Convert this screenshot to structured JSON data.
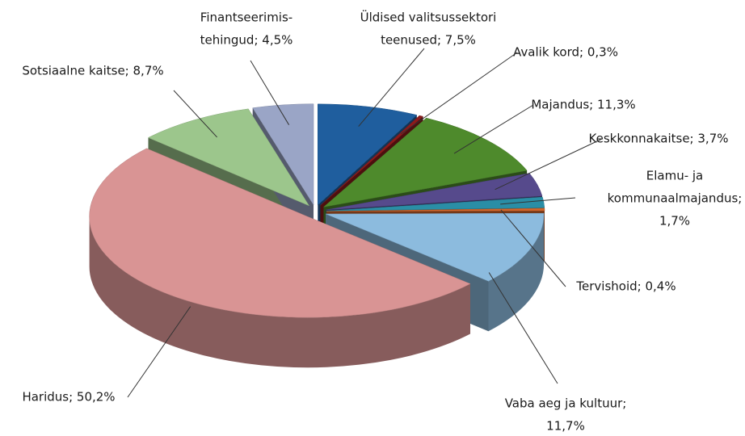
{
  "chart_data": {
    "type": "pie3d",
    "labels": [
      [
        "Üldised valitsussektori",
        "teenused; 7,5%"
      ],
      [
        "Avalik kord; 0,3%"
      ],
      [
        "Majandus; 11,3%"
      ],
      [
        "Keskkonnakaitse; 3,7%"
      ],
      [
        "Elamu- ja",
        "kommunaalmajandus;",
        "1,7%"
      ],
      [
        "Tervishoid; 0,4%"
      ],
      [
        "Vaba aeg ja kultuur;",
        "11,7%"
      ],
      [
        "Haridus; 50,2%"
      ],
      [
        "Sotsiaalne kaitse; 8,7%"
      ],
      [
        "Finantseerimis-",
        "tehingud; 4,5%"
      ]
    ],
    "values": [
      7.5,
      0.3,
      11.3,
      3.7,
      1.7,
      0.4,
      11.7,
      50.2,
      8.7,
      4.5
    ],
    "colors": [
      "#1f5e9e",
      "#8c1c1c",
      "#4e8a2c",
      "#564a8c",
      "#2a8ea6",
      "#d2662c",
      "#8cbbde",
      "#d99494",
      "#9cc68c",
      "#9aa5c6"
    ]
  }
}
